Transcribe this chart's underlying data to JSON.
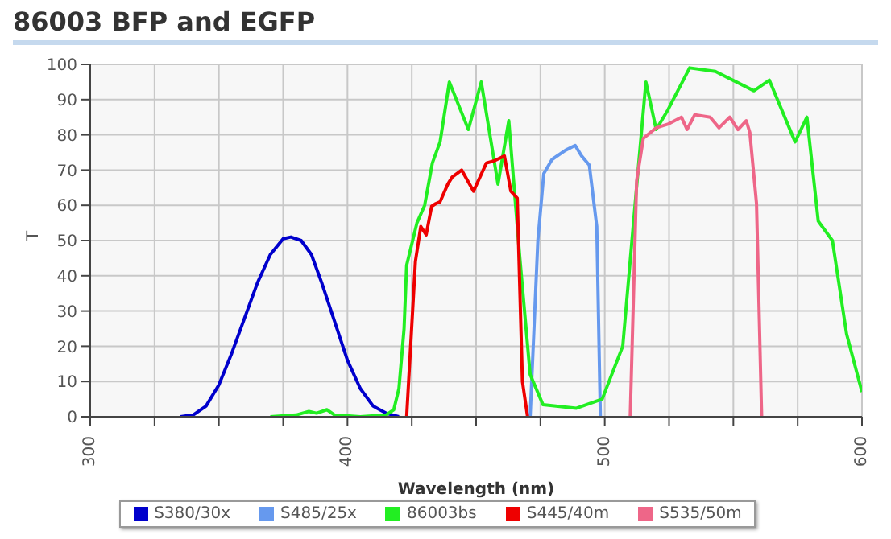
{
  "chart_data": {
    "type": "line",
    "title": "86003 BFP and EGFP",
    "xlabel": "Wavelength (nm)",
    "ylabel": "T",
    "xlim": [
      300,
      600
    ],
    "xticks": [
      300,
      {
        "value": 325,
        "label": null
      },
      {
        "value": 350,
        "label": null
      },
      {
        "value": 375,
        "label": null
      },
      400,
      {
        "value": 425,
        "label": null
      },
      {
        "value": 450,
        "label": null
      },
      {
        "value": 475,
        "label": null
      },
      500,
      {
        "value": 525,
        "label": null
      },
      {
        "value": 550,
        "label": null
      },
      {
        "value": 575,
        "label": null
      },
      600
    ],
    "ylim": [
      0,
      100
    ],
    "yticks": [
      0,
      10,
      20,
      30,
      40,
      50,
      60,
      70,
      80,
      90,
      100
    ],
    "grid": true,
    "legend": "bottom",
    "marker": "none",
    "line_style": "solid",
    "series": [
      {
        "name": "S380/30x",
        "color": "#0000cc",
        "x": [
          335,
          340,
          345,
          350,
          355,
          360,
          365,
          370,
          375,
          378,
          382,
          386,
          390,
          395,
          400,
          405,
          410,
          415,
          420
        ],
        "values": [
          0,
          0.5,
          3,
          9,
          18,
          28,
          38,
          46,
          50.5,
          51,
          50,
          46,
          38,
          27,
          16,
          8,
          3,
          1,
          0
        ]
      },
      {
        "name": "S485/25x",
        "color": "#6699ee",
        "x": [
          471,
          474,
          476.3,
          479.5,
          484.7,
          488.5,
          491,
          494,
          496.9,
          498.3
        ],
        "values": [
          0,
          50,
          69,
          73,
          75.6,
          77,
          74,
          71.4,
          54,
          0
        ]
      },
      {
        "name": "86003bs",
        "color": "#22ee22",
        "x": [
          370,
          380,
          385,
          388,
          392,
          395,
          405,
          415,
          418,
          420,
          422,
          423,
          427,
          430,
          433,
          436,
          439.6,
          447,
          452,
          458.5,
          462.7,
          467,
          471,
          476,
          489,
          499,
          507,
          512,
          516,
          520,
          524.5,
          533,
          543,
          558,
          564,
          574,
          578.6,
          583,
          588.5,
          594,
          600
        ],
        "values": [
          0,
          0.5,
          1.5,
          1,
          2,
          0.5,
          0,
          0.5,
          2,
          8,
          25,
          43,
          55,
          60,
          72,
          78,
          95,
          81.5,
          95,
          66,
          84,
          45,
          12,
          3.4,
          2.4,
          5,
          20,
          62,
          95,
          81.5,
          87,
          99,
          98,
          92.5,
          95.5,
          78,
          85,
          55.5,
          50,
          23.5,
          7
        ]
      },
      {
        "name": "S445/40m",
        "color": "#ee0000",
        "x": [
          423,
          426.4,
          428.5,
          430.6,
          432.7,
          434.4,
          436,
          439,
          440.7,
          444.4,
          449,
          454,
          457,
          461,
          463.5,
          466,
          468,
          470
        ],
        "values": [
          0,
          44,
          54,
          51.6,
          59.7,
          60.5,
          61,
          66,
          68,
          70,
          64,
          72,
          72.6,
          74,
          64,
          62,
          10,
          0
        ]
      },
      {
        "name": "S535/50m",
        "color": "#ee6688",
        "x": [
          509.9,
          512.4,
          515,
          520,
          524.5,
          529.8,
          532,
          535,
          541,
          544.4,
          548.6,
          551.8,
          555,
          556.4,
          559,
          561
        ],
        "values": [
          0,
          67,
          79,
          82,
          83,
          85,
          81.5,
          85.7,
          85,
          82,
          85,
          81.5,
          84,
          80.7,
          60.5,
          0
        ]
      }
    ]
  }
}
